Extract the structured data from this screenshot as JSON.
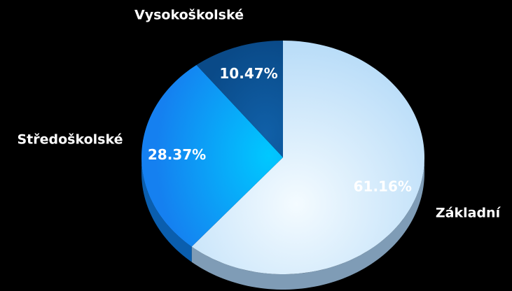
{
  "chart_data": {
    "type": "pie",
    "categories": [
      "Základní",
      "Středoškolské",
      "Vysokoškolské"
    ],
    "values": [
      61.16,
      28.37,
      10.47
    ],
    "value_labels": [
      "61.16%",
      "28.37%",
      "10.47%"
    ],
    "colors": [
      "#cfe8fc",
      "#1b94ff",
      "#0b4f8f"
    ],
    "side_colors": [
      "#7f9cb6",
      "#0a5eae",
      "#073a6a"
    ]
  }
}
